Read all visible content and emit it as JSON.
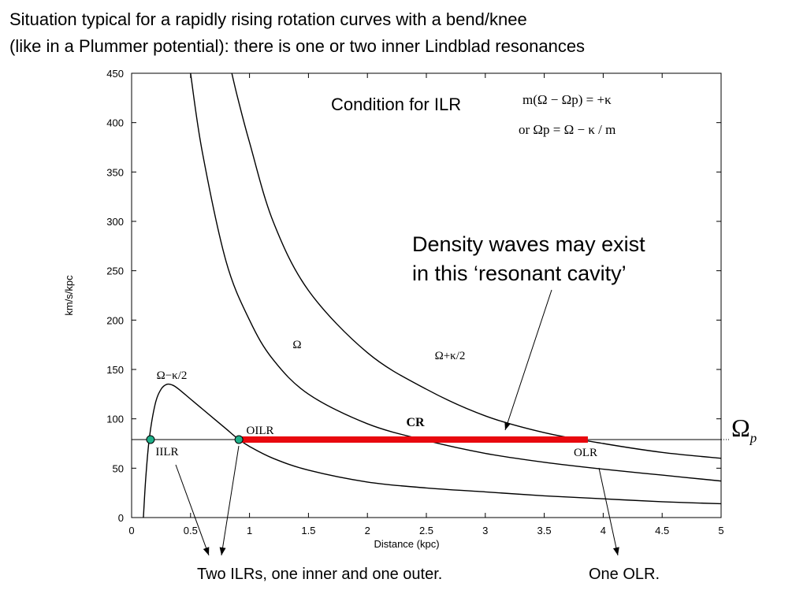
{
  "heading": {
    "line1": "Situation typical for a rapidly rising rotation curves with a bend/knee",
    "line2": "(like in a Plummer potential): there is one or two inner Lindblad resonances"
  },
  "annotations": {
    "condition_label": "Condition for ILR",
    "eq1": "m(Ω − Ωp) = +κ",
    "eq2": "or    Ωp = Ω  − κ / m",
    "density_note_line1": "Density waves may exist",
    "density_note_line2": "in this ‘resonant cavity’",
    "caption_left": "Two ILRs, one inner and one outer.",
    "caption_right": "One OLR.",
    "omega_p": "Ωp"
  },
  "chart_data": {
    "type": "line",
    "xlabel": "Distance (kpc)",
    "ylabel": "km/s/kpc",
    "xlim": [
      0,
      5
    ],
    "ylim": [
      0,
      450
    ],
    "xticks": [
      "0",
      "0.5",
      "1",
      "1.5",
      "2",
      "2.5",
      "3",
      "3.5",
      "4",
      "4.5",
      "5"
    ],
    "yticks": [
      "0",
      "50",
      "100",
      "150",
      "200",
      "250",
      "300",
      "350",
      "400",
      "450"
    ],
    "pattern_speed": 79,
    "series": [
      {
        "name": "Ω+κ/2",
        "x": [
          0.85,
          0.9,
          1.0,
          1.2,
          1.5,
          2.0,
          2.5,
          3.0,
          3.5,
          4.0,
          4.5,
          5.0
        ],
        "y": [
          450,
          425,
          380,
          300,
          230,
          167,
          130,
          103,
          86,
          75,
          66,
          60
        ]
      },
      {
        "name": "Ω",
        "x": [
          0.5,
          0.6,
          0.8,
          1.0,
          1.2,
          1.5,
          2.0,
          2.5,
          3.0,
          3.5,
          4.0,
          4.5,
          5.0
        ],
        "y": [
          450,
          370,
          260,
          200,
          160,
          125,
          95,
          78,
          65,
          56,
          49,
          43,
          37
        ]
      },
      {
        "name": "Ω−κ/2",
        "x": [
          0.1,
          0.12,
          0.15,
          0.2,
          0.25,
          0.3,
          0.35,
          0.4,
          0.5,
          0.6,
          0.7,
          0.8,
          0.9,
          1.0,
          1.2,
          1.5,
          2.0,
          2.5,
          3.0,
          3.5,
          4.0,
          4.5,
          5.0
        ],
        "y": [
          0,
          40,
          80,
          115,
          130,
          135,
          134,
          130,
          120,
          110,
          100,
          90,
          80,
          72,
          60,
          48,
          36,
          30,
          26,
          22,
          19,
          16,
          14
        ]
      }
    ],
    "cavity": {
      "x_start": 0.9,
      "x_end": 3.87,
      "y": 79,
      "color": "#e8080e"
    },
    "resonances": [
      {
        "label": "IILR",
        "x": 0.16,
        "y": 79
      },
      {
        "label": "OILR",
        "x": 0.91,
        "y": 79
      },
      {
        "label": "CR",
        "x": 2.4,
        "y": 79
      },
      {
        "label": "OLR",
        "x": 3.87,
        "y": 79
      }
    ],
    "curve_labels": [
      "Ω",
      "Ω+κ/2",
      "Ω−κ/2"
    ],
    "grid": false,
    "colors": {
      "curve": "#000000",
      "cavity": "#e8080e",
      "marker": "#1fb08a"
    }
  }
}
